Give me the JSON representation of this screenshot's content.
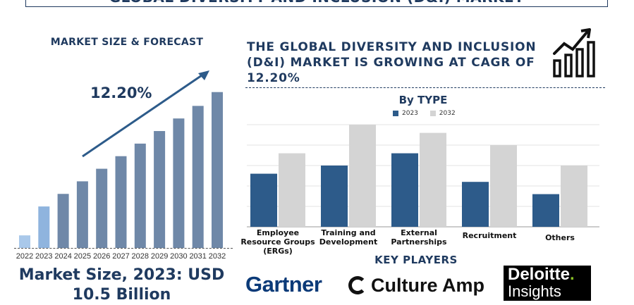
{
  "banner_title": "GLOBAL DIVERSITY AND INCLUSION (D&I) MARKET",
  "left_panel": {
    "title": "MARKET SIZE & FORECAST",
    "cagr": "12.20%",
    "market_size_text": "Market Size, 2023: USD 10.5 Billion"
  },
  "headline": "THE GLOBAL DIVERSITY AND INCLUSION (D&I) MARKET IS GROWING AT CAGR OF 12.20%",
  "type_chart_title": "By TYPE",
  "key_players": {
    "title": "KEY PLAYERS",
    "gartner": "Gartner",
    "culture_amp": "Culture Amp",
    "deloitte": "Deloitte",
    "deloitte_dot": ".",
    "deloitte_sub": "Insights"
  },
  "colors": {
    "navy": "#1f3a5f",
    "bar_dark": "#2d5b8a",
    "bar_light_gray": "#d4d4d4",
    "bar_forecast": "#6f88a8",
    "bar_2023": "#8fb4de",
    "bar_2022": "#a9c8ea"
  },
  "chart_data": [
    {
      "type": "bar",
      "title": "MARKET SIZE & FORECAST",
      "categories": [
        "2022",
        "2023",
        "2024",
        "2025",
        "2026",
        "2027",
        "2028",
        "2029",
        "2030",
        "2031",
        "2032"
      ],
      "values": [
        1.0,
        3.3,
        4.3,
        5.3,
        6.3,
        7.3,
        8.3,
        9.3,
        10.3,
        11.3,
        12.4
      ],
      "ylim": [
        0,
        13
      ],
      "annotation": "12.20%",
      "grid": false
    },
    {
      "type": "bar",
      "title": "By TYPE",
      "categories": [
        "Employee Resource Groups (ERGs)",
        "Training and Development",
        "External Partnerships",
        "Recruitment",
        "Others"
      ],
      "series": [
        {
          "name": "2023",
          "values": [
            2.6,
            3.0,
            3.6,
            2.2,
            1.6
          ]
        },
        {
          "name": "2032",
          "values": [
            3.6,
            5.0,
            4.6,
            4.0,
            3.0
          ]
        }
      ],
      "ylim": [
        0,
        5
      ],
      "grid": true,
      "legend": "top"
    }
  ]
}
